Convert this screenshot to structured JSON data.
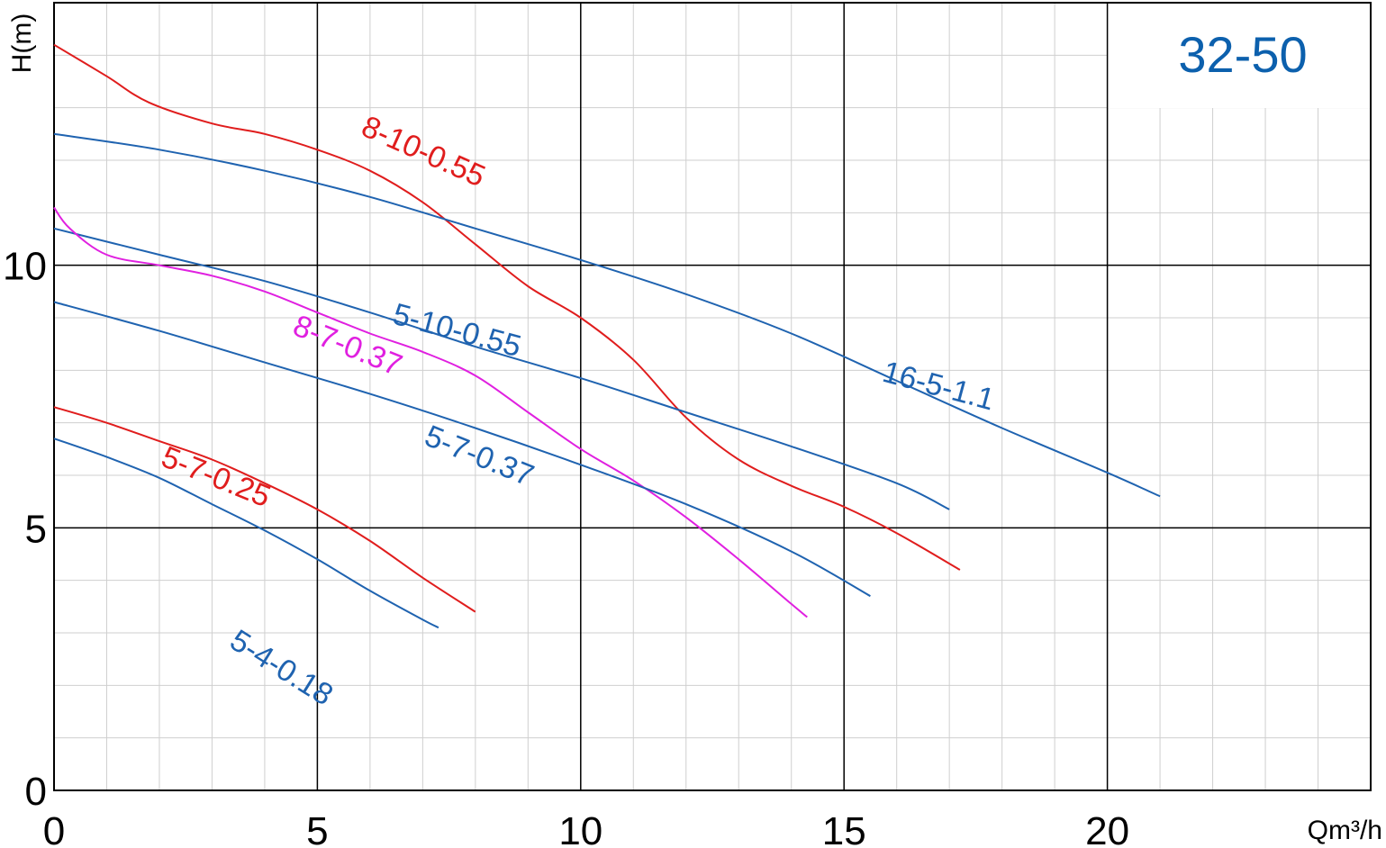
{
  "chart_data": {
    "type": "line",
    "title": "32-50",
    "xlabel": "Qm³/h",
    "ylabel": "H(m)",
    "xlim": [
      0,
      25
    ],
    "ylim": [
      0,
      15
    ],
    "x_ticks": [
      0,
      5,
      10,
      15,
      20
    ],
    "y_ticks": [
      0,
      5,
      10
    ],
    "grid": true,
    "colors": {
      "blue": "#1f63b0",
      "red": "#e01d1d",
      "magenta": "#e020e0",
      "title": "#0c60ad",
      "major_grid": "#000000",
      "minor_grid": "#cfcfcf"
    },
    "series": [
      {
        "name": "8-10-0.55",
        "color": "#e01d1d",
        "x": [
          0,
          1,
          1.8,
          3,
          4,
          5,
          6,
          7,
          8,
          9,
          10,
          11,
          12,
          13,
          14,
          15,
          16,
          17.2
        ],
        "y": [
          14.2,
          13.6,
          13.1,
          12.7,
          12.5,
          12.2,
          11.8,
          11.2,
          10.4,
          9.6,
          9.0,
          8.2,
          7.1,
          6.3,
          5.8,
          5.4,
          4.9,
          4.2
        ]
      },
      {
        "name": "16-5-1.1",
        "color": "#1f63b0",
        "x": [
          0,
          2,
          4,
          6,
          8,
          10,
          12,
          14,
          16,
          18,
          20,
          21
        ],
        "y": [
          12.5,
          12.2,
          11.8,
          11.3,
          10.7,
          10.1,
          9.45,
          8.7,
          7.8,
          6.9,
          6.05,
          5.6
        ]
      },
      {
        "name": "5-10-0.55",
        "color": "#1f63b0",
        "x": [
          0,
          2,
          4,
          6,
          8,
          10,
          12,
          14,
          16,
          17
        ],
        "y": [
          10.7,
          10.2,
          9.7,
          9.1,
          8.45,
          7.85,
          7.2,
          6.55,
          5.85,
          5.35
        ]
      },
      {
        "name": "8-7-0.37",
        "color": "#e020e0",
        "x": [
          0,
          0.3,
          1,
          2,
          3,
          4,
          5,
          6,
          7,
          8,
          9,
          10,
          11,
          12,
          13,
          14,
          14.3
        ],
        "y": [
          11.1,
          10.7,
          10.2,
          10.0,
          9.8,
          9.5,
          9.1,
          8.7,
          8.35,
          7.9,
          7.2,
          6.5,
          5.9,
          5.2,
          4.4,
          3.55,
          3.3
        ]
      },
      {
        "name": "5-7-0.37",
        "color": "#1f63b0",
        "x": [
          0,
          2,
          4,
          6,
          8,
          10,
          12,
          14,
          15.5
        ],
        "y": [
          9.3,
          8.75,
          8.15,
          7.55,
          6.9,
          6.2,
          5.45,
          4.55,
          3.7
        ]
      },
      {
        "name": "5-7-0.25",
        "color": "#e01d1d",
        "x": [
          0,
          1,
          2,
          3,
          4,
          5,
          6,
          7,
          8
        ],
        "y": [
          7.3,
          7.0,
          6.65,
          6.3,
          5.85,
          5.35,
          4.75,
          4.05,
          3.4
        ]
      },
      {
        "name": "5-4-0.18",
        "color": "#1f63b0",
        "x": [
          0,
          1,
          2,
          3,
          4,
          5,
          6,
          7,
          7.3
        ],
        "y": [
          6.7,
          6.35,
          5.95,
          5.45,
          4.95,
          4.4,
          3.8,
          3.25,
          3.1
        ]
      }
    ],
    "labels": [
      {
        "text": "8-10-0.55",
        "x": 5.8,
        "y": 12.5,
        "angle": 24,
        "color": "#e01d1d"
      },
      {
        "text": "16-5-1.1",
        "x": 15.7,
        "y": 7.8,
        "angle": 15,
        "color": "#1f63b0"
      },
      {
        "text": "5-10-0.55",
        "x": 6.4,
        "y": 8.9,
        "angle": 15,
        "color": "#1f63b0"
      },
      {
        "text": "8-7-0.37",
        "x": 4.5,
        "y": 8.7,
        "angle": 22,
        "color": "#e020e0"
      },
      {
        "text": "5-7-0.37",
        "x": 7.0,
        "y": 6.6,
        "angle": 22,
        "color": "#1f63b0"
      },
      {
        "text": "5-7-0.25",
        "x": 2.0,
        "y": 6.2,
        "angle": 22,
        "color": "#e01d1d"
      },
      {
        "text": "5-4-0.18",
        "x": 3.3,
        "y": 2.75,
        "angle": 32,
        "color": "#1f63b0"
      }
    ]
  }
}
